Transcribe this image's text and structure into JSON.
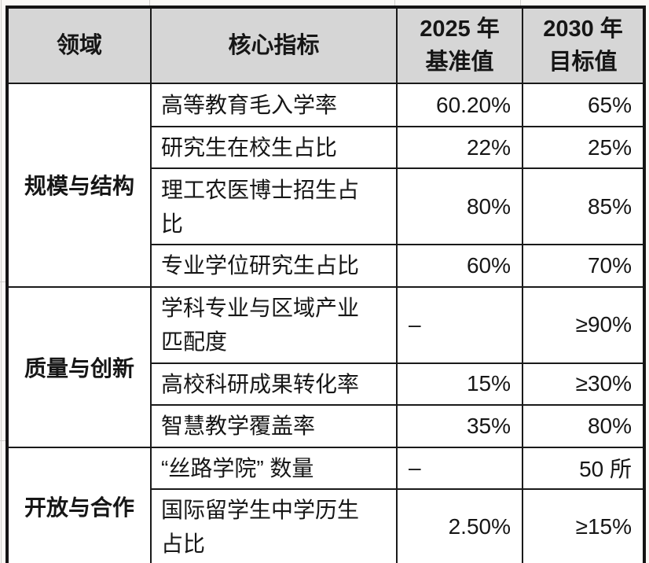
{
  "colors": {
    "page_background": "#faf9f6",
    "header_background": "#d6d6d6",
    "border": "#1a1a1a",
    "text": "#161616"
  },
  "table": {
    "columns": [
      {
        "id": "domain",
        "label": "领域"
      },
      {
        "id": "indicator",
        "label": "核心指标"
      },
      {
        "id": "baseline",
        "label_top": "2025 年",
        "label_bottom": "基准值"
      },
      {
        "id": "target",
        "label_top": "2030 年",
        "label_bottom": "目标值"
      }
    ],
    "groups": [
      {
        "domain": "规模与结构",
        "rows": [
          {
            "indicator": "高等教育毛入学率",
            "baseline": "60.20%",
            "target": "65%"
          },
          {
            "indicator": "研究生在校生占比",
            "baseline": "22%",
            "target": "25%"
          },
          {
            "indicator": "理工农医博士招生占比",
            "baseline": "80%",
            "target": "85%"
          },
          {
            "indicator": "专业学位研究生占比",
            "baseline": "60%",
            "target": "70%"
          }
        ]
      },
      {
        "domain": "质量与创新",
        "rows": [
          {
            "indicator": "学科专业与区域产业匹配度",
            "baseline": "–",
            "target": "≥90%"
          },
          {
            "indicator": "高校科研成果转化率",
            "baseline": "15%",
            "target": "≥30%"
          },
          {
            "indicator": "智慧教学覆盖率",
            "baseline": "35%",
            "target": "80%"
          }
        ]
      },
      {
        "domain": "开放与合作",
        "rows": [
          {
            "indicator": "“丝路学院” 数量",
            "baseline": "–",
            "target": "50 所"
          },
          {
            "indicator": "国际留学生中学历生占比",
            "baseline": "2.50%",
            "target": "≥15%"
          }
        ]
      }
    ]
  }
}
